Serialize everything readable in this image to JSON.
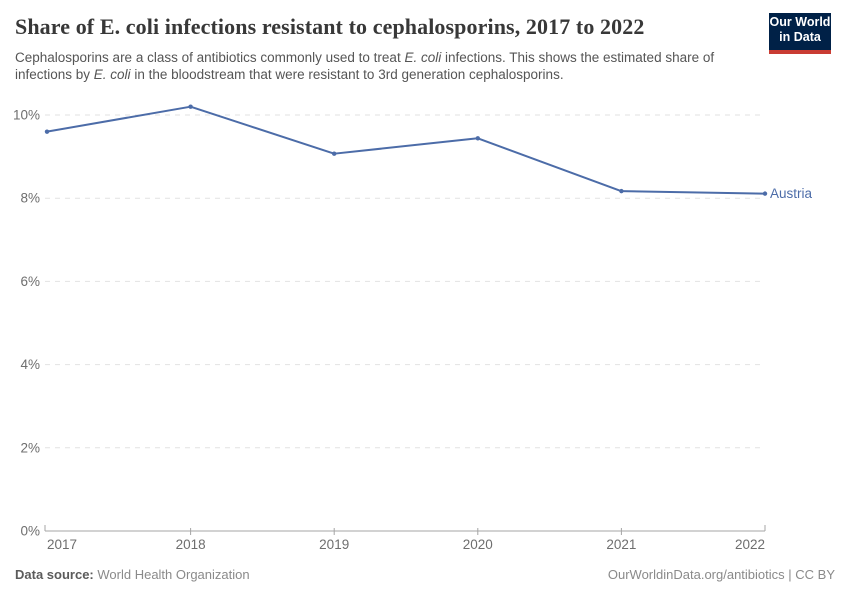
{
  "header": {
    "title": "Share of E. coli infections resistant to cephalosporins, 2017 to 2022",
    "subtitle_parts": [
      {
        "text": "Cephalosporins are a class of antibiotics commonly used to treat ",
        "italic": false
      },
      {
        "text": "E. coli",
        "italic": true
      },
      {
        "text": " infections. This shows the estimated share of infections by ",
        "italic": false
      },
      {
        "text": "E. coli",
        "italic": true
      },
      {
        "text": " in the bloodstream that were resistant to 3rd generation cephalosporins.",
        "italic": false
      }
    ],
    "logo": {
      "line1": "Our World",
      "line2": "in Data",
      "bg_color": "#002147",
      "bar_color": "#C93C33"
    }
  },
  "chart_data": {
    "type": "line",
    "title": "Share of E. coli infections resistant to cephalosporins, 2017 to 2022",
    "x": [
      2017,
      2018,
      2019,
      2020,
      2021,
      2022
    ],
    "series": [
      {
        "name": "Austria",
        "values": [
          9.6,
          10.2,
          9.07,
          9.44,
          8.17,
          8.11
        ],
        "color": "#4C6CA8"
      }
    ],
    "ylim": [
      0,
      10
    ],
    "yticks": [
      0,
      2,
      4,
      6,
      8,
      10
    ],
    "ytick_format": "{v}%",
    "xlabel": "",
    "ylabel": "",
    "grid": "horizontal-dashed",
    "legend_position": "end-of-line-label"
  },
  "footer": {
    "source_label": "Data source:",
    "source_value": "World Health Organization",
    "link": "OurWorldinData.org/antibiotics | CC BY"
  }
}
